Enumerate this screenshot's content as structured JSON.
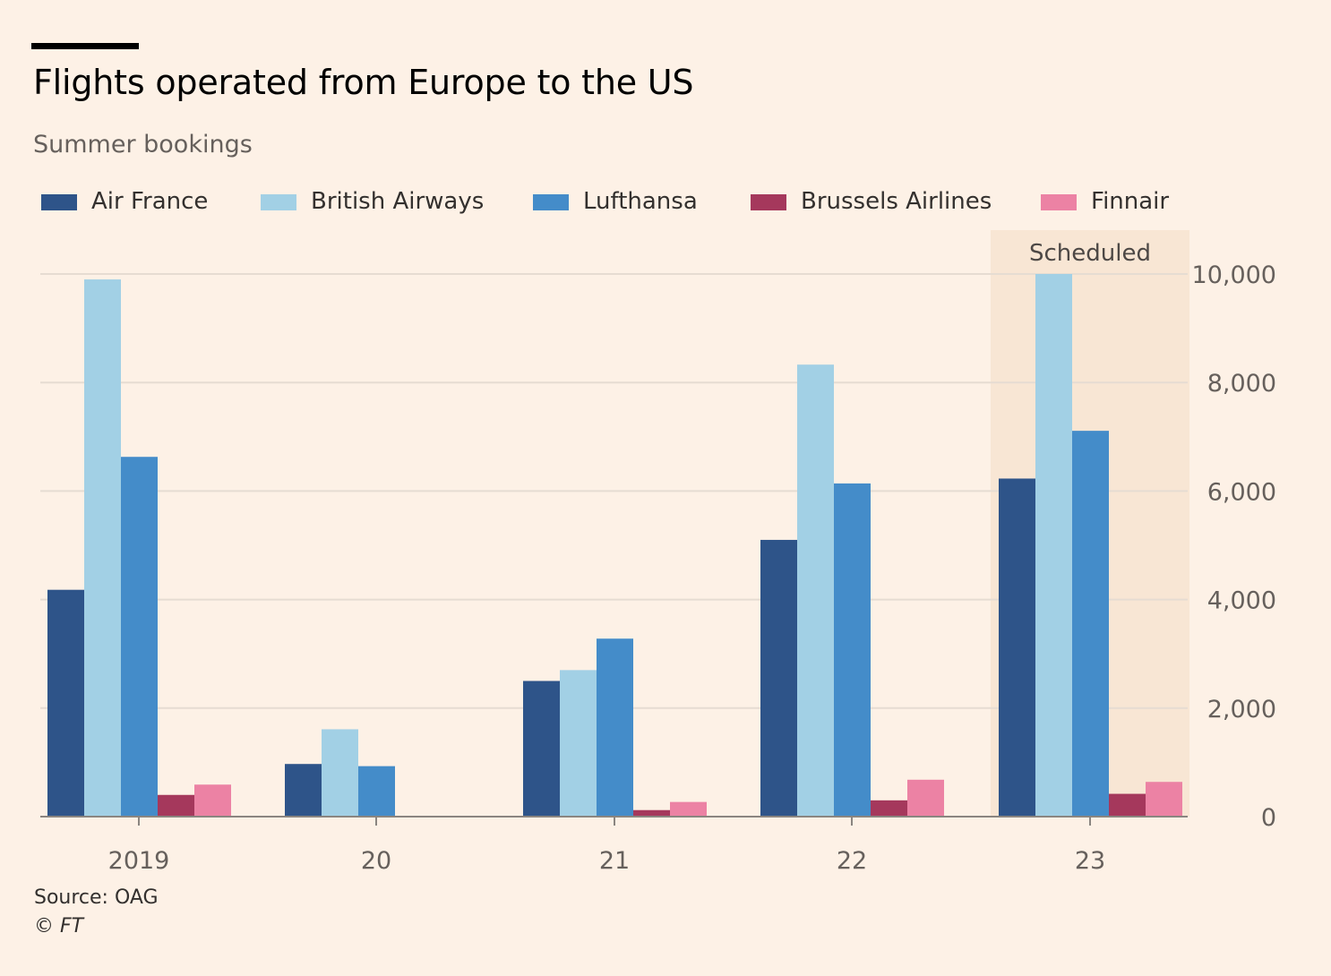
{
  "header": {
    "title": "Flights operated from Europe to the US",
    "subtitle": "Summer bookings"
  },
  "footer": {
    "source": "Source: OAG",
    "copyright": "© FT"
  },
  "legend": [
    {
      "label": "Air France",
      "color": "#2e5489"
    },
    {
      "label": "British Airways",
      "color": "#a2d0e5"
    },
    {
      "label": "Lufthansa",
      "color": "#448cc9"
    },
    {
      "label": "Brussels Airlines",
      "color": "#a5385c"
    },
    {
      "label": "Finnair",
      "color": "#ec82a4"
    }
  ],
  "chart_data": {
    "type": "bar",
    "categories": [
      "2019",
      "20",
      "21",
      "22",
      "23"
    ],
    "series": [
      {
        "name": "Air France",
        "color": "#2e5489",
        "values": [
          4180,
          970,
          2500,
          5100,
          6230
        ]
      },
      {
        "name": "British Airways",
        "color": "#a2d0e5",
        "values": [
          9900,
          1610,
          2700,
          8330,
          10000
        ]
      },
      {
        "name": "Lufthansa",
        "color": "#448cc9",
        "values": [
          6630,
          930,
          3280,
          6140,
          7110
        ]
      },
      {
        "name": "Brussels Airlines",
        "color": "#a5385c",
        "values": [
          400,
          0,
          120,
          300,
          420
        ]
      },
      {
        "name": "Finnair",
        "color": "#ec82a4",
        "values": [
          590,
          0,
          270,
          680,
          640
        ]
      }
    ],
    "y_ticks": [
      "0",
      "2,000",
      "4,000",
      "6,000",
      "8,000",
      "10,000"
    ],
    "ylim": [
      0,
      10000
    ],
    "y_axis_side": "right",
    "grid": true,
    "legend_position": "top",
    "highlight": {
      "category": "23",
      "label": "Scheduled",
      "color": "#f8e6d4"
    }
  }
}
